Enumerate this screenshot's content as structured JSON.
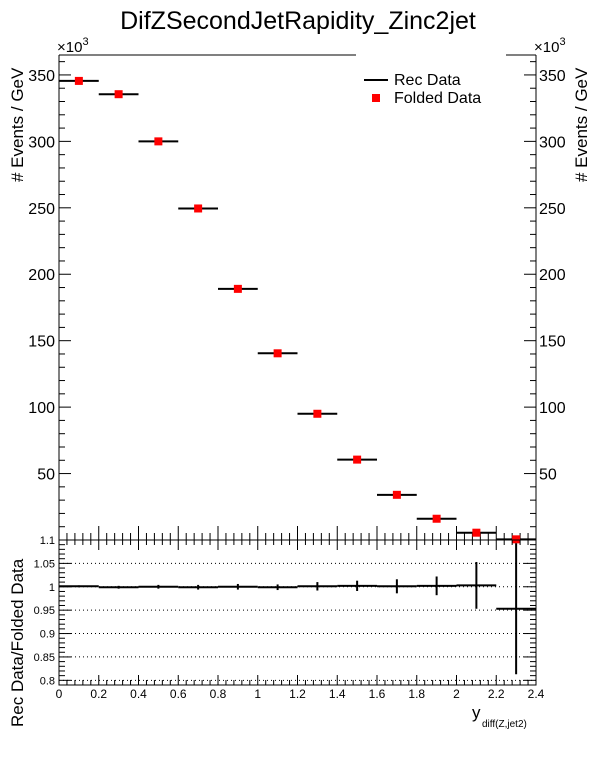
{
  "title": "DifZSecondJetRapidity_Zinc2jet",
  "top_ylabel": "# Events / GeV",
  "exponent_base": "×10",
  "exponent_power": "3",
  "bottom_ylabel": "Rec Data/Folded Data",
  "xlabel_main": "y",
  "xlabel_sub": "diff(Z,jet2)",
  "legend": {
    "rec_label": "Rec Data",
    "folded_label": "Folded Data",
    "rec_color": "#000000",
    "folded_color": "#ff0000"
  },
  "chart_data": [
    {
      "type": "scatter",
      "title": "DifZSecondJetRapidity_Zinc2jet",
      "ylabel": "# Events / GeV",
      "y_multiplier": "x10^3",
      "xlim": [
        0,
        2.4
      ],
      "ylim": [
        0,
        365
      ],
      "x_ticks": [
        "0",
        "0.2",
        "0.4",
        "0.6",
        "0.8",
        "1",
        "1.2",
        "1.4",
        "1.6",
        "1.8",
        "2",
        "2.2",
        "2.4"
      ],
      "y_ticks": [
        "50",
        "100",
        "150",
        "200",
        "250",
        "300",
        "350"
      ],
      "legend_position": "top-right",
      "bin_edges": [
        0,
        0.2,
        0.4,
        0.6,
        0.8,
        1.0,
        1.2,
        1.4,
        1.6,
        1.8,
        2.0,
        2.2,
        2.4
      ],
      "series": [
        {
          "name": "Rec Data",
          "style": "horizontal bin bars",
          "values": [
            345.5,
            335.5,
            300,
            249.5,
            189,
            140.5,
            95,
            60.5,
            34,
            16,
            5.5,
            0.5
          ]
        },
        {
          "name": "Folded Data",
          "style": "red square markers",
          "values": [
            345.5,
            335.5,
            300,
            249.5,
            189,
            140.5,
            95,
            60.5,
            34,
            16,
            5.5,
            0.5
          ]
        }
      ]
    },
    {
      "type": "scatter",
      "ylabel": "Rec Data/Folded Data",
      "xlabel": "y diff(Z,jet2)",
      "xlim": [
        0,
        2.4
      ],
      "ylim": [
        0.79,
        1.1
      ],
      "x_ticks": [
        "0",
        "0.2",
        "0.4",
        "0.6",
        "0.8",
        "1",
        "1.2",
        "1.4",
        "1.6",
        "1.8",
        "2",
        "2.2",
        "2.4"
      ],
      "y_ticks": [
        "0.8",
        "0.85",
        "0.9",
        "0.95",
        "1",
        "1.05",
        "1.1"
      ],
      "grid": "horizontal dotted",
      "bin_edges": [
        0,
        0.2,
        0.4,
        0.6,
        0.8,
        1.0,
        1.2,
        1.4,
        1.6,
        1.8,
        2.0,
        2.2,
        2.4
      ],
      "values": [
        1.001,
        0.999,
        1.0,
        0.999,
        1.0,
        0.999,
        1.001,
        1.002,
        1.001,
        1.002,
        1.003,
        0.953
      ],
      "errors": [
        0.002,
        0.003,
        0.004,
        0.005,
        0.006,
        0.006,
        0.009,
        0.011,
        0.015,
        0.02,
        0.05,
        0.14
      ]
    }
  ]
}
